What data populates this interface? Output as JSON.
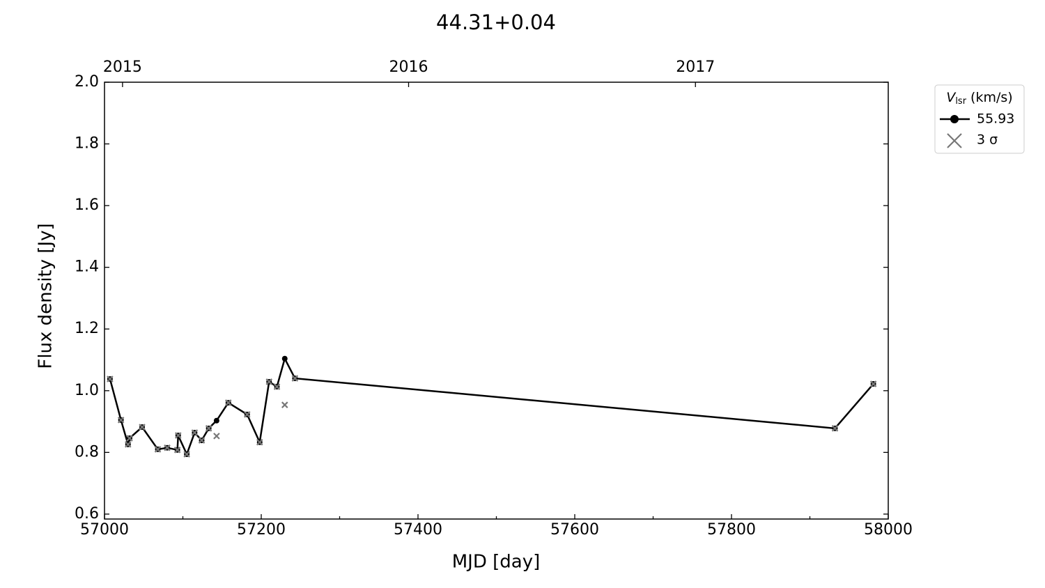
{
  "chart_data": {
    "type": "line",
    "title": "44.31+0.04",
    "x_label": "MJD [day]",
    "y_label": "Flux density [Jy]",
    "x": [
      57007,
      57021,
      57030,
      57032,
      57048,
      57068,
      57080,
      57093,
      57094,
      57105,
      57115,
      57124,
      57133,
      57143,
      57158,
      57182,
      57198,
      57210,
      57220,
      57230,
      57243,
      57932,
      57981
    ],
    "series": [
      {
        "name": "55.93",
        "color": "#000000",
        "marker": "o",
        "values": [
          1.038,
          0.905,
          0.826,
          0.846,
          0.882,
          0.81,
          0.815,
          0.808,
          0.855,
          0.794,
          0.864,
          0.839,
          0.878,
          0.903,
          0.961,
          0.923,
          0.833,
          1.029,
          1.013,
          1.104,
          1.04,
          0.878,
          1.022
        ]
      },
      {
        "name": "3 σ",
        "color": "#777777",
        "marker": "x",
        "values": [
          1.038,
          0.905,
          0.826,
          0.846,
          0.882,
          0.81,
          0.815,
          0.808,
          0.855,
          0.794,
          0.864,
          0.839,
          0.878,
          0.853,
          0.961,
          0.923,
          0.833,
          1.029,
          1.013,
          0.954,
          1.04,
          0.878,
          1.022
        ]
      }
    ],
    "legend_title": {
      "symbol": "V",
      "subscript": "lsr",
      "unit": "(km/s)"
    },
    "legend_position": "outside right top",
    "xlim": [
      57000,
      58000
    ],
    "xticks": [
      57000,
      57200,
      57400,
      57600,
      57800,
      58000
    ],
    "xminorticks": [
      57100,
      57300,
      57500,
      57700,
      57900
    ],
    "x2ticks": [
      {
        "value": 57023,
        "label": "2015"
      },
      {
        "value": 57388,
        "label": "2016"
      },
      {
        "value": 57754,
        "label": "2017"
      }
    ],
    "ylim": [
      0.584,
      2.0
    ],
    "yticks": [
      0.6,
      0.8,
      {
        "value": 1,
        "label": "1.0"
      },
      1.2,
      1.4,
      1.6,
      1.8,
      {
        "value": 2,
        "label": "2.0"
      }
    ],
    "grid": false
  }
}
